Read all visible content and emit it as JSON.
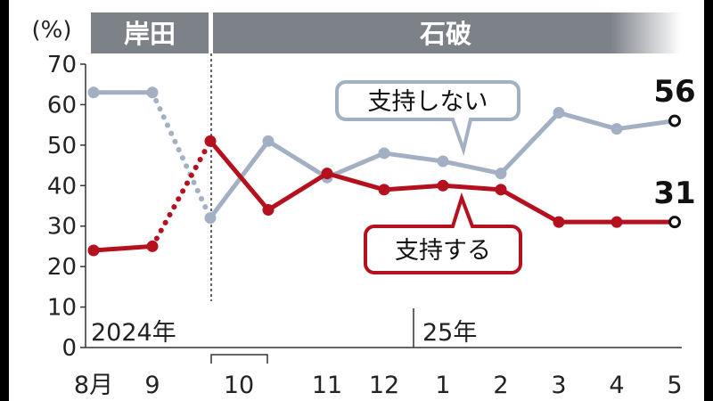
{
  "chart_data": {
    "type": "line",
    "unit_label": "(%)",
    "periods": [
      {
        "name": "岸田",
        "color": "#7d8288"
      },
      {
        "name": "石破",
        "color": "#7d8288"
      }
    ],
    "x_labels": [
      "8月",
      "9",
      "10",
      "11",
      "12",
      "1",
      "2",
      "3",
      "4",
      "5"
    ],
    "year_labels": [
      "2024年",
      "25年"
    ],
    "ylim": [
      0,
      70
    ],
    "yticks": [
      0,
      10,
      20,
      30,
      40,
      50,
      60,
      70
    ],
    "series": [
      {
        "name": "支持しない",
        "color": "#a3b0c3",
        "points": [
          {
            "x": "8月",
            "y": 63
          },
          {
            "x": "9",
            "y": 63
          },
          {
            "x": "10a",
            "y": 32
          },
          {
            "x": "10b",
            "y": 51
          },
          {
            "x": "11",
            "y": 42
          },
          {
            "x": "12",
            "y": 48
          },
          {
            "x": "1",
            "y": 46
          },
          {
            "x": "2",
            "y": 43
          },
          {
            "x": "3",
            "y": 58
          },
          {
            "x": "4",
            "y": 54
          },
          {
            "x": "5",
            "y": 56
          }
        ],
        "end_label": "56"
      },
      {
        "name": "支持する",
        "color": "#b5101e",
        "points": [
          {
            "x": "8月",
            "y": 24
          },
          {
            "x": "9",
            "y": 25
          },
          {
            "x": "10a",
            "y": 51
          },
          {
            "x": "10b",
            "y": 34
          },
          {
            "x": "11",
            "y": 43
          },
          {
            "x": "12",
            "y": 39
          },
          {
            "x": "1",
            "y": 40
          },
          {
            "x": "2",
            "y": 39
          },
          {
            "x": "3",
            "y": 31
          },
          {
            "x": "4",
            "y": 31
          },
          {
            "x": "5",
            "y": 31
          }
        ],
        "end_label": "31"
      }
    ]
  }
}
